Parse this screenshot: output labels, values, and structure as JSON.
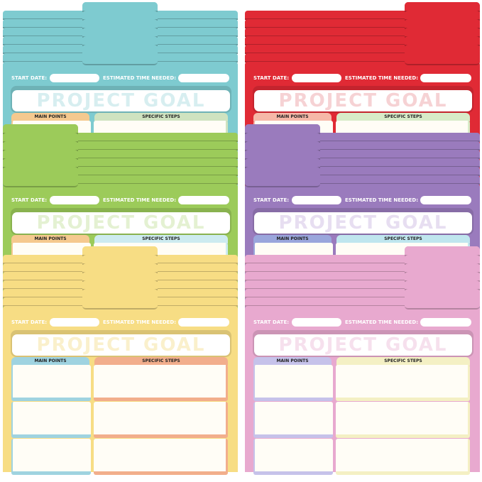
{
  "labels": {
    "start_date": "START DATE:",
    "estimated_time": "ESTIMATED TIME NEEDED:",
    "project_goal": "PROJECT GOAL",
    "main_points": "MAIN POINTS",
    "specific_steps": "SPECIFIC STEPS"
  },
  "folders": [
    {
      "color": "#7ecbd0",
      "main_color": "#f5c98f",
      "steps_color": "#cfe3c0",
      "goal_text_color": "#d7eef0",
      "tab_position": "middle"
    },
    {
      "color": "#e02a35",
      "main_color": "#f6b8a8",
      "steps_color": "#d8ebc8",
      "goal_text_color": "#f6d2d4",
      "tab_position": "right"
    },
    {
      "color": "#9ccb5a",
      "main_color": "#f5c98f",
      "steps_color": "#cdebf0",
      "goal_text_color": "#e4f1d2",
      "tab_position": "left"
    },
    {
      "color": "#9a7bbd",
      "main_color": "#9aa6dc",
      "steps_color": "#bfe6ee",
      "goal_text_color": "#e7def1",
      "tab_position": "left"
    },
    {
      "color": "#f7dd84",
      "main_color": "#9fd3e0",
      "steps_color": "#f2ae8c",
      "goal_text_color": "#faf0cc",
      "tab_position": "middle"
    },
    {
      "color": "#e8a9cf",
      "main_color": "#c6c2ea",
      "steps_color": "#f4f0c4",
      "goal_text_color": "#f6e0ed",
      "tab_position": "right"
    }
  ]
}
